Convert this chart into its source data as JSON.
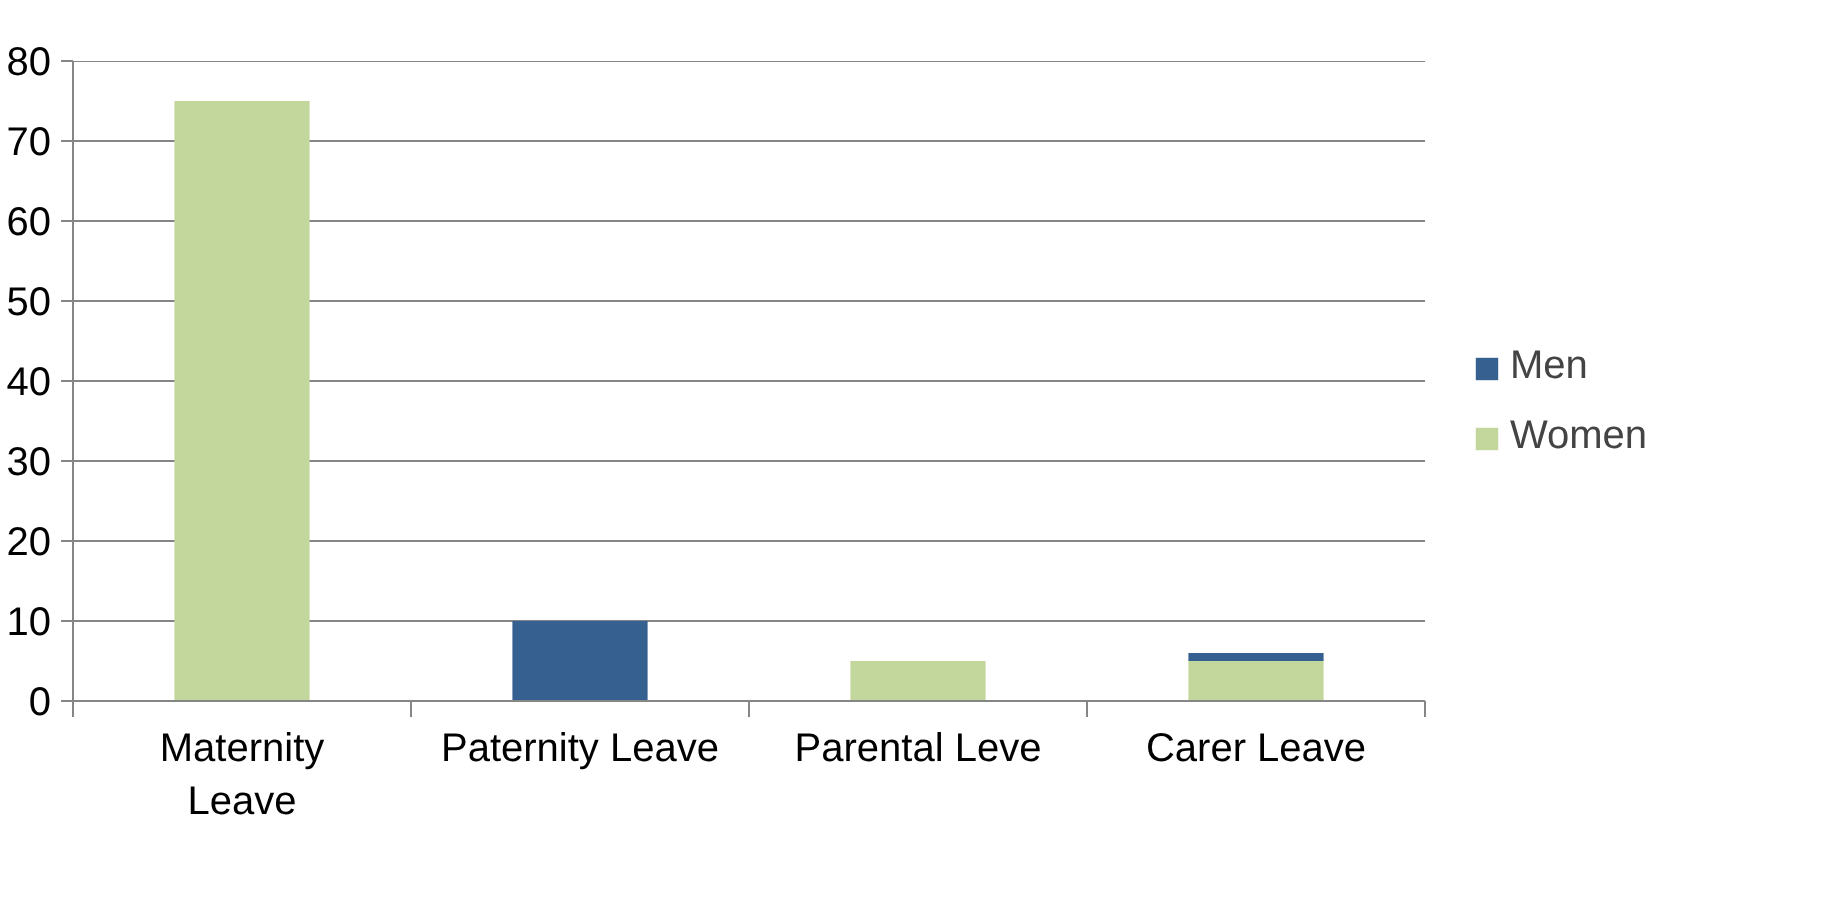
{
  "chart_data": {
    "type": "bar",
    "stacked": true,
    "categories": [
      "Maternity\nLeave",
      "Paternity Leave",
      "Parental Leve",
      "Carer Leave"
    ],
    "series": [
      {
        "name": "Women",
        "color": "#c3d69b",
        "values": [
          75,
          0,
          5,
          5
        ]
      },
      {
        "name": "Men",
        "color": "#35608f",
        "values": [
          0,
          10,
          0,
          1
        ]
      }
    ],
    "ylim": [
      0,
      80
    ],
    "yticks": [
      0,
      10,
      20,
      30,
      40,
      50,
      60,
      70,
      80
    ],
    "grid": "y",
    "legend": "right"
  }
}
